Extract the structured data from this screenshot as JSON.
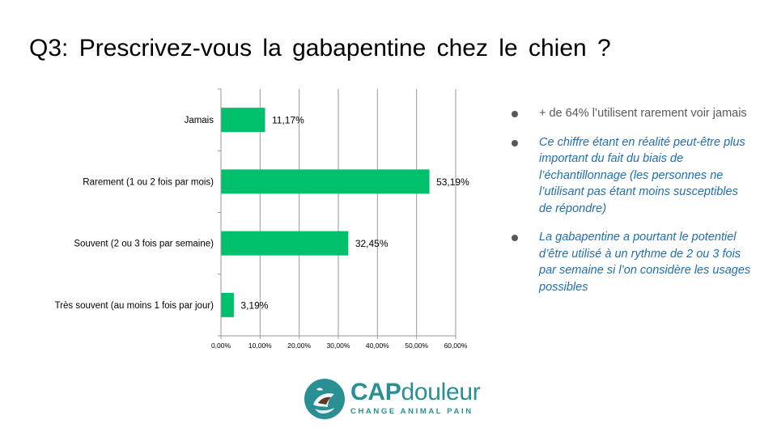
{
  "slide": {
    "title": "Q3: Prescrivez-vous la gabapentine chez le chien ?"
  },
  "chart_data": {
    "type": "bar",
    "orientation": "horizontal",
    "categories": [
      "Jamais",
      "Rarement (1 ou 2 fois par mois)",
      "Souvent (2 ou 3 fois par semaine)",
      "Très souvent (au moins 1 fois par jour)"
    ],
    "values": [
      11.17,
      53.19,
      32.45,
      3.19
    ],
    "value_labels": [
      "11,17%",
      "53,19%",
      "32,45%",
      "3,19%"
    ],
    "xlim": [
      0,
      60
    ],
    "xticks": [
      "0,00%",
      "10,00%",
      "20,00%",
      "30,00%",
      "40,00%",
      "50,00%",
      "60,00%"
    ],
    "grid": "vertical",
    "legend": "none",
    "bar_color": "#00C06B",
    "title": "",
    "xlabel": "",
    "ylabel": ""
  },
  "bullets": [
    {
      "text": "+ de 64% l’utilisent rarement voir jamais",
      "style": "plain"
    },
    {
      "text": "Ce chiffre étant en réalité peut-être plus important du fait du biais de l’échantillonnage  (les personnes ne l’utilisant pas étant moins susceptibles de répondre)",
      "style": "emph"
    },
    {
      "text": "La gabapentine a pourtant le potentiel d’être utilisé à un rythme de 2 ou 3 fois par semaine si l’on considère les usages possibles",
      "style": "emph"
    }
  ],
  "logo": {
    "name_bold": "CAP",
    "name_rest": "douleur",
    "tagline": "CHANGE ANIMAL PAIN",
    "color": "#2a8f92"
  }
}
